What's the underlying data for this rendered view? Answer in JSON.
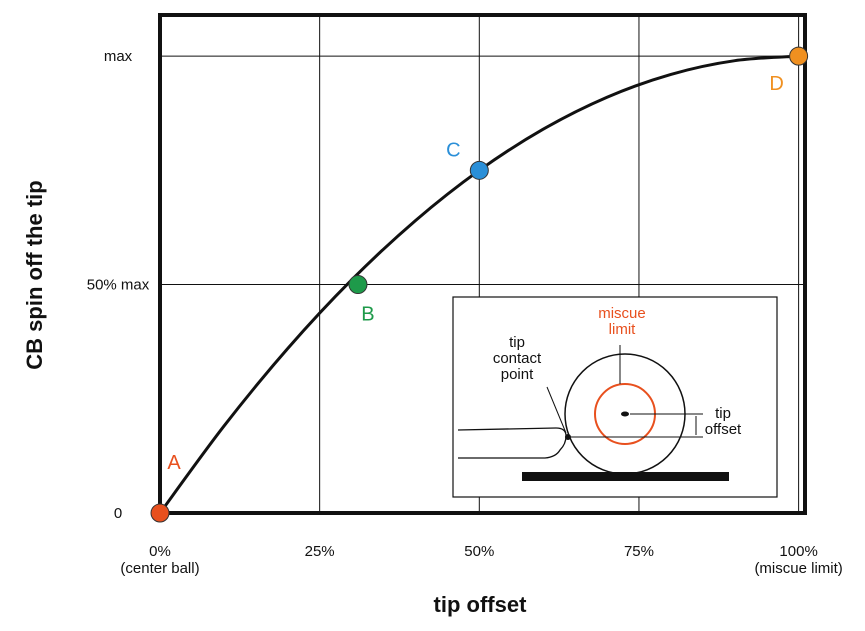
{
  "chart_data": {
    "type": "line",
    "x": [
      0,
      10,
      20,
      30,
      40,
      50,
      60,
      70,
      80,
      90,
      100
    ],
    "series": [
      {
        "color": "#111111",
        "values": [
          0,
          19,
          36,
          51,
          64,
          75,
          84,
          91,
          96,
          99,
          100
        ]
      }
    ],
    "points": [
      {
        "label": "A",
        "x": 0,
        "y": 0,
        "color": "#e8501e"
      },
      {
        "label": "B",
        "x": 31,
        "y": 50,
        "color": "#1e9a4a"
      },
      {
        "label": "C",
        "x": 50,
        "y": 75,
        "color": "#2a8fd8"
      },
      {
        "label": "D",
        "x": 100,
        "y": 100,
        "color": "#f09020"
      }
    ],
    "xlabel": "tip offset",
    "ylabel": "CB spin off the tip",
    "xlim": [
      0,
      101
    ],
    "ylim": [
      0,
      109
    ],
    "xticks": [
      {
        "value": 0,
        "label": "0%\n(center ball)"
      },
      {
        "value": 25,
        "label": "25%"
      },
      {
        "value": 50,
        "label": "50%"
      },
      {
        "value": 75,
        "label": "75%"
      },
      {
        "value": 100,
        "label": "100%\n(miscue limit)"
      }
    ],
    "yticks": [
      0,
      {
        "value": 50,
        "label": "50% max"
      },
      {
        "value": 100,
        "label": "max"
      }
    ],
    "grid": true,
    "annotations": [
      {
        "text": "miscue\nlimit",
        "color": "#e8501e"
      },
      {
        "text": "tip\ncontact\npoint",
        "color": "#111111"
      },
      {
        "text": "tip\noffset",
        "color": "#111111"
      }
    ]
  }
}
